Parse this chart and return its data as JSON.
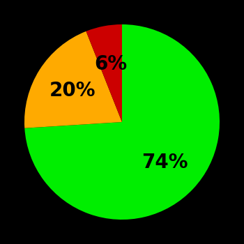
{
  "slices": [
    74,
    20,
    6
  ],
  "colors": [
    "#00ee00",
    "#ffaa00",
    "#cc0000"
  ],
  "labels": [
    "74%",
    "20%",
    "6%"
  ],
  "background_color": "#000000",
  "startangle": 90,
  "label_fontsize": 20,
  "label_fontweight": "bold",
  "label_r": 0.6,
  "label_angles_override": [
    0.0,
    234.0,
    318.0
  ]
}
